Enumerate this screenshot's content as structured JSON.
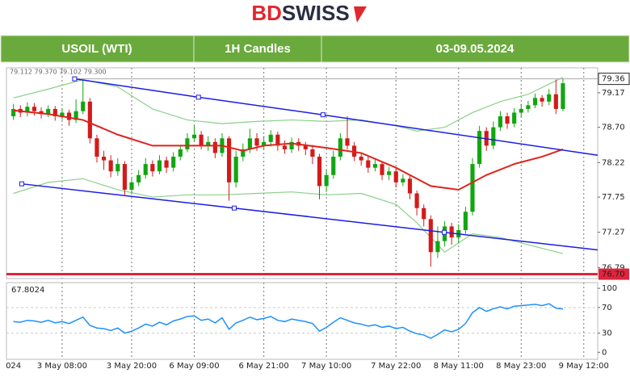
{
  "header": {
    "logo": [
      "BD",
      "SWISS"
    ],
    "cells": [
      "USOIL (WTI)",
      "1H Candles",
      "03-09.05.2024"
    ]
  },
  "chart_data": {
    "type": "candlestick",
    "ohlc_text": "79.112 79.370 79.102 79.300",
    "xlim": [
      -1,
      84
    ],
    "xticks": [
      {
        "value": 0,
        "label": "024"
      },
      {
        "value": 7,
        "label": "3 May 08:00"
      },
      {
        "value": 17,
        "label": "3 May 20:00"
      },
      {
        "value": 26,
        "label": "6 May 09:00"
      },
      {
        "value": 36,
        "label": "6 May 21:00"
      },
      {
        "value": 45,
        "label": "7 May 10:00"
      },
      {
        "value": 55,
        "label": "7 May 22:00"
      },
      {
        "value": 64,
        "label": "8 May 11:00"
      },
      {
        "value": 73,
        "label": "8 May 23:00"
      },
      {
        "value": 82,
        "label": "9 May 12:00"
      }
    ],
    "grid": true,
    "ylim": [
      76.64,
      79.51
    ],
    "yticks": [
      79.17,
      {
        "value": 78.7,
        "label": "78.70"
      },
      78.22,
      77.75,
      77.27,
      76.79
    ],
    "current_price": 79.36,
    "support_level": {
      "value": 76.7,
      "label": "76.70"
    },
    "up_color": "#11a611",
    "down_color": "#d41a1a",
    "open": [
      78.85,
      78.95,
      78.9,
      78.98,
      78.92,
      78.88,
      78.95,
      78.85,
      78.9,
      78.8,
      78.92,
      79.05,
      78.55,
      78.3,
      78.25,
      78.1,
      78.2,
      77.85,
      77.95,
      78.05,
      78.2,
      78.1,
      78.25,
      78.15,
      78.3,
      78.4,
      78.55,
      78.6,
      78.45,
      78.5,
      78.35,
      78.55,
      77.95,
      78.3,
      78.4,
      78.55,
      78.45,
      78.5,
      78.6,
      78.45,
      78.4,
      78.5,
      78.45,
      78.4,
      78.3,
      77.9,
      78.05,
      78.3,
      78.55,
      78.45,
      78.3,
      78.25,
      78.15,
      78.2,
      78.05,
      78.1,
      77.95,
      78.0,
      77.8,
      77.6,
      77.45,
      77.0,
      77.15,
      77.35,
      77.2,
      77.3,
      77.55,
      78.2,
      78.65,
      78.45,
      78.7,
      78.85,
      78.75,
      78.9,
      78.95,
      79.0,
      79.1,
      79.05,
      79.15,
      78.95
    ],
    "high": [
      79.02,
      79.0,
      79.04,
      79.03,
      78.97,
      79.0,
      78.99,
      78.96,
      78.94,
      79.08,
      79.35,
      79.1,
      78.6,
      78.38,
      78.32,
      78.28,
      78.24,
      78.02,
      78.12,
      78.28,
      78.25,
      78.32,
      78.3,
      78.36,
      78.46,
      78.62,
      78.72,
      78.65,
      78.58,
      78.55,
      78.62,
      78.58,
      78.38,
      78.48,
      78.68,
      78.62,
      78.58,
      78.66,
      78.64,
      78.52,
      78.56,
      78.55,
      78.5,
      78.46,
      78.34,
      78.12,
      78.38,
      78.62,
      78.85,
      78.5,
      78.36,
      78.3,
      78.27,
      78.24,
      78.16,
      78.14,
      78.06,
      78.04,
      77.84,
      77.65,
      77.5,
      77.35,
      77.42,
      77.4,
      77.38,
      77.62,
      78.28,
      78.72,
      78.7,
      78.78,
      78.92,
      78.9,
      78.96,
      79.02,
      79.06,
      79.16,
      79.14,
      79.22,
      79.35,
      79.36
    ],
    "low": [
      78.8,
      78.84,
      78.85,
      78.86,
      78.82,
      78.84,
      78.79,
      78.8,
      78.72,
      78.76,
      78.88,
      78.48,
      78.22,
      78.12,
      78.02,
      78.04,
      77.78,
      77.8,
      77.9,
      78.0,
      78.03,
      78.06,
      78.08,
      78.1,
      78.25,
      78.36,
      78.5,
      78.4,
      78.38,
      78.28,
      78.3,
      77.7,
      77.88,
      78.24,
      78.35,
      78.38,
      78.4,
      78.44,
      78.38,
      78.34,
      78.35,
      78.38,
      78.32,
      78.2,
      77.72,
      77.82,
      78.0,
      78.25,
      78.4,
      78.24,
      78.18,
      78.08,
      78.1,
      77.98,
      77.98,
      77.88,
      77.9,
      77.72,
      77.5,
      77.35,
      76.8,
      76.92,
      77.08,
      77.1,
      77.12,
      77.25,
      77.5,
      78.15,
      78.38,
      78.4,
      78.65,
      78.68,
      78.7,
      78.84,
      78.9,
      78.96,
      78.98,
      79.0,
      78.88,
      78.92
    ],
    "close": [
      78.95,
      78.9,
      78.98,
      78.92,
      78.88,
      78.95,
      78.85,
      78.9,
      78.8,
      78.92,
      79.05,
      78.55,
      78.3,
      78.25,
      78.1,
      78.2,
      77.85,
      77.95,
      78.05,
      78.2,
      78.1,
      78.25,
      78.15,
      78.3,
      78.4,
      78.55,
      78.6,
      78.45,
      78.5,
      78.35,
      78.55,
      77.95,
      78.3,
      78.4,
      78.55,
      78.45,
      78.5,
      78.6,
      78.45,
      78.4,
      78.5,
      78.45,
      78.4,
      78.3,
      77.9,
      78.05,
      78.3,
      78.55,
      78.45,
      78.3,
      78.25,
      78.15,
      78.2,
      78.05,
      78.1,
      77.95,
      78.0,
      77.8,
      77.6,
      77.45,
      77.0,
      77.15,
      77.35,
      77.2,
      77.3,
      77.55,
      78.2,
      78.65,
      78.45,
      78.7,
      78.85,
      78.75,
      78.9,
      78.95,
      79.0,
      79.1,
      79.05,
      79.15,
      78.95,
      79.3
    ],
    "channels": [
      {
        "color": "#1c1ce6",
        "x": [
          8.8,
          26.6,
          44.5,
          84
        ],
        "y": [
          79.36,
          79.11,
          78.87,
          78.32
        ]
      },
      {
        "color": "#1c1ce6",
        "x": [
          1.2,
          31.75,
          61.95,
          84
        ],
        "y": [
          77.93,
          77.6,
          77.27,
          77.03
        ]
      }
    ],
    "ma": {
      "color": "#e0241c",
      "x": [
        0,
        5,
        10,
        15,
        20,
        25,
        30,
        33,
        36,
        40,
        45,
        50,
        55,
        60,
        64,
        68,
        72,
        76,
        79
      ],
      "values": [
        78.93,
        78.88,
        78.8,
        78.6,
        78.45,
        78.45,
        78.45,
        78.38,
        78.45,
        78.48,
        78.42,
        78.35,
        78.15,
        77.9,
        77.85,
        78.05,
        78.2,
        78.3,
        78.4
      ]
    },
    "bands": [
      {
        "color": "#8ccf8c",
        "x": [
          0,
          5,
          10,
          15,
          20,
          25,
          30,
          35,
          40,
          45,
          50,
          55,
          58,
          62,
          66,
          70,
          74,
          79
        ],
        "values": [
          79.1,
          79.22,
          79.35,
          79.25,
          78.95,
          78.8,
          78.75,
          78.78,
          78.8,
          78.78,
          78.8,
          78.72,
          78.65,
          78.7,
          78.9,
          79.05,
          79.15,
          79.38
        ]
      },
      {
        "color": "#8ccf8c",
        "x": [
          0,
          5,
          10,
          15,
          20,
          25,
          30,
          35,
          40,
          45,
          50,
          55,
          58,
          62,
          66,
          70,
          74,
          79
        ],
        "values": [
          77.8,
          77.95,
          78.0,
          77.85,
          77.75,
          77.78,
          77.78,
          77.8,
          77.82,
          77.78,
          77.8,
          77.65,
          77.4,
          77.0,
          77.25,
          77.2,
          77.1,
          76.98
        ]
      }
    ],
    "rsi": {
      "color": "#1e90ff",
      "ylim": [
        -11,
        109
      ],
      "yticks": [
        100,
        70,
        30,
        0
      ],
      "levels": [
        70,
        30
      ],
      "values": [
        48,
        47,
        50,
        49,
        47,
        50,
        46,
        48,
        45,
        50,
        55,
        42,
        38,
        37,
        34,
        38,
        30,
        33,
        38,
        44,
        41,
        47,
        43,
        49,
        52,
        56,
        57,
        50,
        52,
        46,
        54,
        36,
        46,
        50,
        55,
        51,
        53,
        56,
        50,
        48,
        52,
        50,
        48,
        45,
        33,
        39,
        47,
        54,
        50,
        46,
        44,
        41,
        43,
        39,
        41,
        37,
        39,
        33,
        29,
        27,
        22,
        28,
        35,
        32,
        36,
        45,
        62,
        70,
        64,
        68,
        71,
        68,
        72,
        73,
        74,
        75,
        73,
        76,
        69,
        67.8024
      ]
    }
  }
}
